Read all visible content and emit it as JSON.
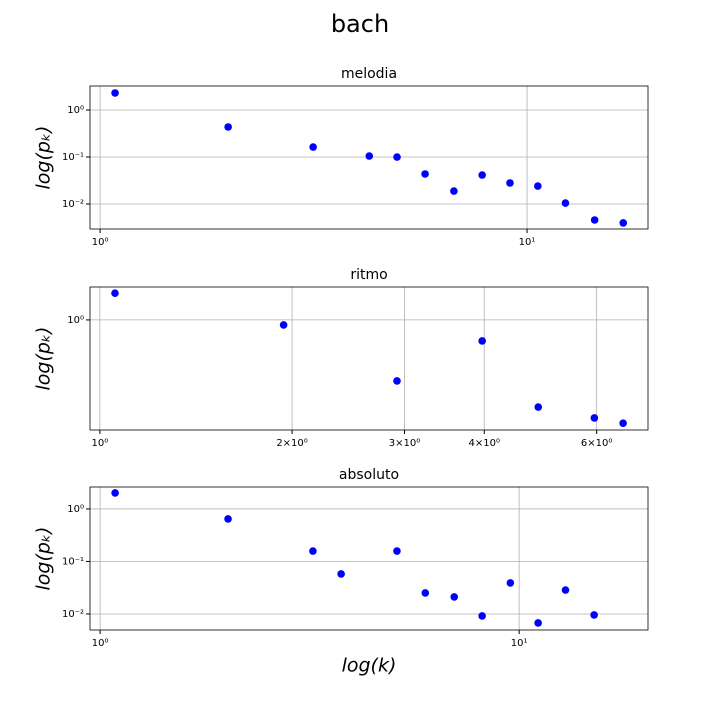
{
  "title": "bach",
  "chart_data": [
    {
      "type": "scatter",
      "title": "melodia",
      "ylabel": "log(pₖ)",
      "xscale": "log",
      "yscale": "log",
      "grid": true,
      "color": "#0000ff",
      "x": [
        1.084,
        1.995,
        3.155,
        4.27,
        4.96,
        5.77,
        6.74,
        7.85,
        9.12,
        10.6,
        12.3,
        14.4,
        16.8
      ],
      "values": [
        2.3,
        0.435,
        0.163,
        0.105,
        0.1,
        0.0435,
        0.0189,
        0.0414,
        0.028,
        0.0241,
        0.0105,
        0.00457,
        0.00396
      ],
      "xlim": [
        0.947,
        19.2
      ],
      "ylim": [
        0.00294,
        3.24
      ],
      "xticks": [
        {
          "value": 1,
          "label": "10⁰"
        },
        {
          "value": 10,
          "label": "10¹"
        }
      ],
      "yticks": [
        {
          "value": 0.01,
          "label": "10⁻²"
        },
        {
          "value": 0.1,
          "label": "10⁻¹"
        },
        {
          "value": 1,
          "label": "10⁰"
        }
      ]
    },
    {
      "type": "scatter",
      "title": "ritmo",
      "ylabel": "log(pₖ)",
      "xscale": "log",
      "yscale": "log",
      "grid": true,
      "color": "#0000ff",
      "x": [
        1.056,
        1.94,
        2.92,
        3.97,
        4.86,
        5.95,
        6.6
      ],
      "values": [
        1.36,
        0.944,
        0.496,
        0.785,
        0.367,
        0.324,
        0.305
      ],
      "xlim": [
        0.965,
        7.22
      ],
      "ylim": [
        0.282,
        1.46
      ],
      "xticks": [
        {
          "value": 1,
          "label": "10⁰"
        },
        {
          "value": 2,
          "label": "2×10⁰"
        },
        {
          "value": 3,
          "label": "3×10⁰"
        },
        {
          "value": 4,
          "label": "4×10⁰"
        },
        {
          "value": 6,
          "label": "6×10⁰"
        }
      ],
      "yticks": [
        {
          "value": 1,
          "label": "10⁰"
        }
      ]
    },
    {
      "type": "scatter",
      "title": "absoluto",
      "ylabel": "log(pₖ)",
      "xlabel": "log(k)",
      "xscale": "log",
      "yscale": "log",
      "grid": true,
      "color": "#0000ff",
      "x": [
        1.086,
        2.02,
        3.22,
        3.76,
        5.11,
        5.97,
        7.0,
        8.16,
        9.53,
        11.1,
        12.9,
        15.1
      ],
      "values": [
        2.02,
        0.645,
        0.158,
        0.0578,
        0.158,
        0.0251,
        0.0211,
        0.00916,
        0.039,
        0.00674,
        0.0286,
        0.00957
      ],
      "xlim": [
        0.946,
        20.3
      ],
      "ylim": [
        0.00495,
        2.62
      ],
      "xticks": [
        {
          "value": 1,
          "label": "10⁰"
        },
        {
          "value": 10,
          "label": "10¹"
        }
      ],
      "yticks": [
        {
          "value": 0.01,
          "label": "10⁻²"
        },
        {
          "value": 0.1,
          "label": "10⁻¹"
        },
        {
          "value": 1,
          "label": "10⁰"
        }
      ]
    }
  ]
}
